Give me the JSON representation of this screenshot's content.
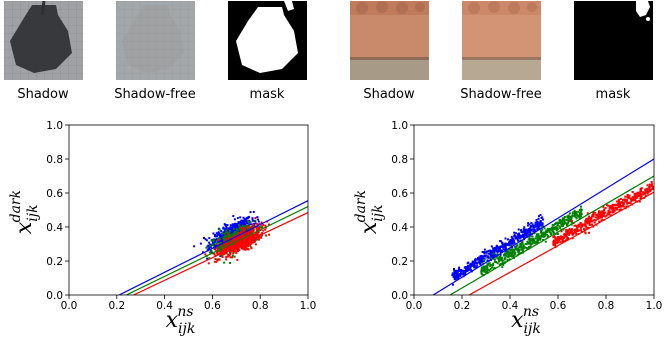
{
  "figure": {
    "colors": {
      "blue": "#0000ff",
      "green": "#008000",
      "red": "#ff0000"
    },
    "groups": [
      {
        "captions": {
          "shadow": "Shadow",
          "shadow_free": "Shadow-free",
          "mask": "mask"
        }
      },
      {
        "captions": {
          "shadow": "Shadow",
          "shadow_free": "Shadow-free",
          "mask": "mask"
        }
      }
    ]
  },
  "chart_data": [
    {
      "type": "scatter",
      "xlabel": {
        "base": "x",
        "sub": "ijk",
        "sup": "ns"
      },
      "ylabel": {
        "base": "x",
        "sub": "ijk",
        "sup": "dark"
      },
      "xlim": [
        0.0,
        1.0
      ],
      "ylim": [
        0.0,
        1.0
      ],
      "xticks": [
        "0.0",
        "0.2",
        "0.4",
        "0.6",
        "0.8",
        "1.0"
      ],
      "yticks": [
        "0.0",
        "0.2",
        "0.4",
        "0.6",
        "0.8",
        "1.0"
      ],
      "grid": false,
      "series": [
        {
          "color": "blue",
          "cluster": {
            "x": [
              0.58,
              0.8
            ],
            "center": [
              0.68,
              0.3
            ]
          },
          "fit_line": [
            [
              0.21,
              0.0
            ],
            [
              1.0,
              0.555
            ]
          ]
        },
        {
          "color": "green",
          "cluster": {
            "x": [
              0.6,
              0.82
            ],
            "center": [
              0.7,
              0.26
            ]
          },
          "fit_line": [
            [
              0.24,
              0.0
            ],
            [
              1.0,
              0.52
            ]
          ]
        },
        {
          "color": "red",
          "cluster": {
            "x": [
              0.6,
              0.84
            ],
            "center": [
              0.72,
              0.25
            ]
          },
          "fit_line": [
            [
              0.27,
              0.0
            ],
            [
              1.0,
              0.485
            ]
          ]
        }
      ]
    },
    {
      "type": "scatter",
      "xlabel": {
        "base": "x",
        "sub": "ijk",
        "sup": "ns"
      },
      "ylabel": {
        "base": "x",
        "sub": "ijk",
        "sup": "dark"
      },
      "xlim": [
        0.0,
        1.0
      ],
      "ylim": [
        0.0,
        1.0
      ],
      "xticks": [
        "0.0",
        "0.2",
        "0.4",
        "0.6",
        "0.8",
        "1.0"
      ],
      "yticks": [
        "0.0",
        "0.2",
        "0.4",
        "0.6",
        "0.8",
        "1.0"
      ],
      "grid": false,
      "series": [
        {
          "color": "blue",
          "cluster": {
            "x": [
              0.16,
              0.54
            ]
          },
          "fit_line": [
            [
              0.08,
              0.0
            ],
            [
              1.0,
              0.8
            ]
          ]
        },
        {
          "color": "green",
          "cluster": {
            "x": [
              0.28,
              0.7
            ]
          },
          "fit_line": [
            [
              0.15,
              0.0
            ],
            [
              1.0,
              0.7
            ]
          ]
        },
        {
          "color": "red",
          "cluster": {
            "x": [
              0.58,
              1.0
            ]
          },
          "fit_line": [
            [
              0.23,
              0.0
            ],
            [
              1.0,
              0.605
            ]
          ]
        }
      ]
    }
  ]
}
